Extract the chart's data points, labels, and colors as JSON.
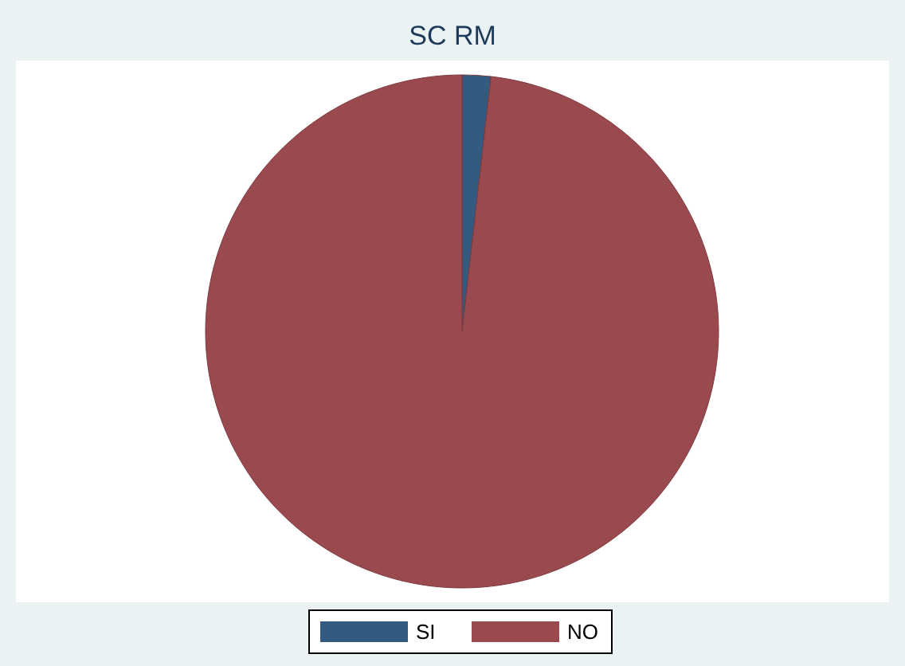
{
  "chart_data": {
    "type": "pie",
    "title": "SC RM",
    "categories": [
      "SI",
      "NO"
    ],
    "values": [
      1.8,
      98.2
    ],
    "colors": [
      "#335a7f",
      "#9a4a4f"
    ],
    "legend": "bottom"
  }
}
